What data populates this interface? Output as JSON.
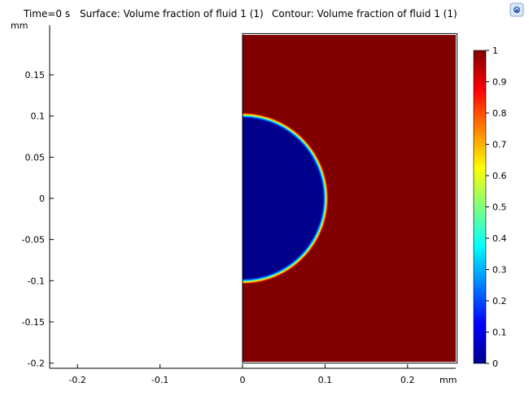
{
  "title": {
    "time": "Time=0 s",
    "surface": "Surface: Volume fraction of fluid 1 (1)",
    "contour": "Contour: Volume fraction of fluid 1 (1)"
  },
  "icon": "coordinate-triad-icon",
  "chart_data": {
    "type": "heatmap",
    "field": "Volume fraction of fluid 1",
    "domain": {
      "x": [
        0,
        0.26
      ],
      "y": [
        -0.2,
        0.2
      ]
    },
    "bubble": {
      "center": [
        0,
        0
      ],
      "radius": 0.1,
      "value_inside": 0,
      "value_outside": 1
    },
    "xlim": [
      -0.24,
      0.26
    ],
    "ylim": [
      -0.205,
      0.2
    ],
    "x_unit": "mm",
    "y_unit": "mm",
    "x_ticks": [
      -0.2,
      -0.1,
      0,
      0.1,
      0.2
    ],
    "x_tick_labels": [
      "-0.2",
      "-0.1",
      "0",
      "0.1",
      "0.2"
    ],
    "y_ticks": [
      0.15,
      0.1,
      0.05,
      0,
      -0.05,
      -0.1,
      -0.15,
      -0.2
    ],
    "y_tick_labels": [
      "0.15",
      "0.1",
      "0.05",
      "0",
      "-0.05",
      "-0.1",
      "-0.15",
      "-0.2"
    ],
    "colorbar": {
      "colormap": "jet",
      "range": [
        0,
        1
      ],
      "ticks": [
        1,
        0.9,
        0.8,
        0.7,
        0.6,
        0.5,
        0.4,
        0.3,
        0.2,
        0.1,
        0
      ],
      "tick_labels": [
        "1",
        "0.9",
        "0.8",
        "0.7",
        "0.6",
        "0.5",
        "0.4",
        "0.3",
        "0.2",
        "0.1",
        "0"
      ]
    },
    "colors": {
      "fluid1": "#800000",
      "fluid2": "#00008b"
    }
  }
}
